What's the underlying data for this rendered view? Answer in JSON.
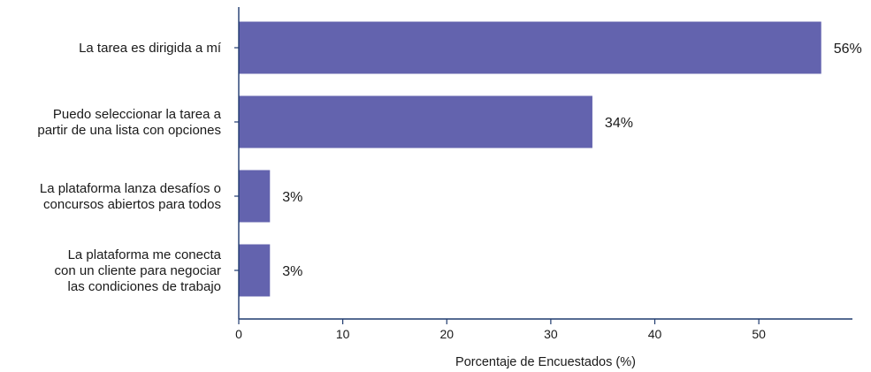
{
  "chart_data": {
    "type": "bar",
    "orientation": "horizontal",
    "categories": [
      [
        "La tarea es dirigida a mí"
      ],
      [
        "Puedo seleccionar la tarea a",
        "partir de una lista con opciones"
      ],
      [
        "La plataforma lanza desafíos o",
        "concursos abiertos para todos"
      ],
      [
        "La plataforma me conecta",
        "con un cliente para negociar",
        "las condiciones de trabajo"
      ]
    ],
    "values": [
      56,
      34,
      3,
      3
    ],
    "value_labels": [
      "56%",
      "34%",
      "3%",
      "3%"
    ],
    "xlabel": "Porcentaje de Encuestados (%)",
    "ylabel": "",
    "xlim": [
      0,
      59
    ],
    "xticks": [
      0,
      10,
      20,
      30,
      40,
      50
    ],
    "grid": false,
    "bar_color": "#6363ae",
    "axis_color": "#1f3a6e"
  }
}
